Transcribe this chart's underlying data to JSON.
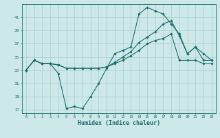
{
  "xlabel": "Humidex (Indice chaleur)",
  "background_color": "#cce8e8",
  "grid_color": "#aacccc",
  "line_color": "#1a6b6b",
  "xlim": [
    -0.5,
    23.5
  ],
  "ylim": [
    26.5,
    43.0
  ],
  "yticks": [
    27,
    29,
    31,
    33,
    35,
    37,
    39,
    41
  ],
  "xticks": [
    0,
    1,
    2,
    3,
    4,
    5,
    6,
    7,
    8,
    9,
    10,
    11,
    12,
    13,
    14,
    15,
    16,
    17,
    18,
    19,
    20,
    21,
    22,
    23
  ],
  "line1_x": [
    0,
    1,
    2,
    3,
    4,
    5,
    6,
    7,
    8,
    9,
    10,
    11,
    12,
    13,
    14,
    15,
    16,
    17,
    18,
    19,
    20,
    21,
    22,
    23
  ],
  "line1_y": [
    33,
    34.5,
    34,
    34,
    32.5,
    27.2,
    27.5,
    27.2,
    29,
    31,
    33.3,
    35.5,
    36,
    36.5,
    41.5,
    42.5,
    42,
    41.5,
    40,
    38.5,
    35.5,
    36.5,
    34.5,
    34.5
  ],
  "line2_x": [
    0,
    1,
    2,
    3,
    4,
    5,
    6,
    7,
    8,
    9,
    10,
    11,
    12,
    13,
    14,
    15,
    16,
    17,
    18,
    19,
    20,
    21,
    22,
    23
  ],
  "line2_y": [
    33,
    34.5,
    34,
    34,
    33.8,
    33.3,
    33.3,
    33.3,
    33.3,
    33.3,
    33.5,
    34.2,
    35.0,
    35.8,
    37.2,
    38.0,
    38.8,
    40.0,
    40.5,
    38.2,
    35.5,
    36.5,
    35.5,
    34.5
  ],
  "line3_x": [
    0,
    1,
    2,
    3,
    4,
    5,
    6,
    7,
    8,
    9,
    10,
    11,
    12,
    13,
    14,
    15,
    16,
    17,
    18,
    19,
    20,
    21,
    22,
    23
  ],
  "line3_y": [
    33,
    34.5,
    34,
    34,
    33.8,
    33.3,
    33.3,
    33.3,
    33.3,
    33.3,
    33.5,
    34.0,
    34.5,
    35.2,
    36.0,
    37.0,
    37.5,
    37.8,
    38.5,
    34.5,
    34.5,
    34.5,
    34.0,
    34.0
  ]
}
